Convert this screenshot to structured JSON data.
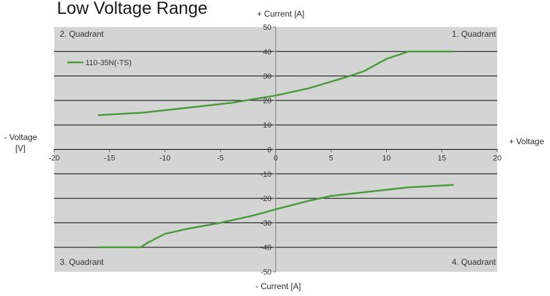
{
  "chart_data": {
    "type": "line",
    "title": "Low Voltage Range",
    "xlabel_left": [
      "- Voltage",
      "[V]"
    ],
    "xlabel_right": "+ Voltage",
    "ylabel_top": "+ Current [A]",
    "ylabel_bottom": "- Current [A]",
    "xlim": [
      -20,
      20
    ],
    "ylim": [
      -50,
      50
    ],
    "xticks": [
      -20,
      -15,
      -10,
      -5,
      0,
      5,
      10,
      15,
      20
    ],
    "yticks": [
      -50,
      -40,
      -30,
      -20,
      -10,
      0,
      10,
      20,
      30,
      40,
      50
    ],
    "grid": "horizontal",
    "legend_position": "top-left",
    "quadrants": {
      "q1": "1. Quadrant",
      "q2": "2. Quadrant",
      "q3": "3. Quadrant",
      "q4": "4. Quadrant"
    },
    "colors": {
      "plot_area": "#d4d4d4",
      "grid": "#000000",
      "series": "#4a9a3c"
    },
    "series": [
      {
        "name": "110-35N(-TS)",
        "segments": [
          [
            [
              -16,
              14
            ],
            [
              -12,
              15
            ],
            [
              -8,
              17
            ],
            [
              -4,
              19
            ],
            [
              0,
              22
            ],
            [
              3,
              25
            ],
            [
              6,
              29
            ],
            [
              8,
              32
            ],
            [
              10,
              37
            ],
            [
              12,
              40
            ],
            [
              16,
              40
            ]
          ],
          [
            [
              -16,
              -40
            ],
            [
              -12.2,
              -40
            ],
            [
              -11.5,
              -38
            ],
            [
              -10,
              -34.5
            ],
            [
              -8,
              -32.5
            ],
            [
              -5,
              -30
            ],
            [
              -2,
              -27
            ],
            [
              0,
              -24.5
            ],
            [
              3,
              -21
            ],
            [
              5,
              -19
            ],
            [
              8,
              -17.5
            ],
            [
              12,
              -15.5
            ],
            [
              16,
              -14.5
            ]
          ]
        ]
      }
    ]
  }
}
